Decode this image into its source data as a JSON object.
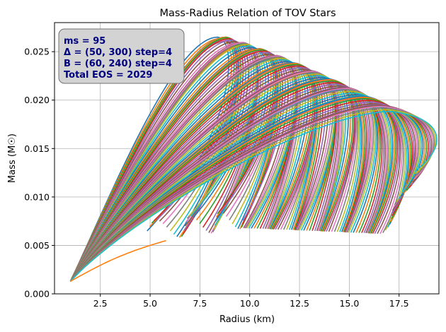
{
  "chart_data": {
    "type": "line",
    "title": "Mass-Radius Relation of TOV Stars",
    "xlabel": "Radius (km)",
    "ylabel": "Mass (M☉)",
    "xlim": [
      0.2,
      19.5
    ],
    "ylim": [
      0,
      0.028
    ],
    "x_ticks": [
      2.5,
      5.0,
      7.5,
      10.0,
      12.5,
      15.0,
      17.5
    ],
    "x_tick_labels": [
      "2.5",
      "5.0",
      "7.5",
      "10.0",
      "12.5",
      "15.0",
      "17.5"
    ],
    "y_ticks": [
      0.0,
      0.005,
      0.01,
      0.015,
      0.02,
      0.025
    ],
    "y_tick_labels": [
      "0.000",
      "0.005",
      "0.010",
      "0.015",
      "0.020",
      "0.025"
    ],
    "grid": true,
    "legend": "none",
    "annotation": {
      "lines": [
        "ms = 95",
        "Δ = (50, 300) step=4",
        "B = (60, 240) step=4",
        "Total EOS = 2029"
      ],
      "placement": "top-left",
      "box_color": "#d3d3d3",
      "text_color": "#00007f"
    },
    "series_count": 2029,
    "series_family": {
      "description_of_curves": "one mass-radius curve per EOS",
      "representative_curves": [
        {
          "start": [
            1.0,
            0.0013
          ],
          "max_point": [
            8.5,
            0.0268
          ],
          "end": [
            5.0,
            0.0055
          ]
        },
        {
          "start": [
            1.0,
            0.0013
          ],
          "max_point": [
            10.5,
            0.0268
          ],
          "end": [
            8.0,
            0.0085
          ]
        },
        {
          "start": [
            1.0,
            0.0013
          ],
          "max_point": [
            12.5,
            0.0245
          ],
          "end": [
            10.5,
            0.0063
          ]
        },
        {
          "start": [
            1.0,
            0.0013
          ],
          "max_point": [
            15.0,
            0.0222
          ],
          "end": [
            15.5,
            0.0063
          ]
        },
        {
          "start": [
            1.0,
            0.0013
          ],
          "max_point": [
            17.0,
            0.0195
          ],
          "end": [
            18.5,
            0.0127
          ]
        }
      ]
    },
    "palette": [
      "#1f77b4",
      "#ff7f0e",
      "#2ca02c",
      "#d62728",
      "#9467bd",
      "#8c564b",
      "#e377c2",
      "#7f7f7f",
      "#bcbd22",
      "#17becf"
    ]
  }
}
